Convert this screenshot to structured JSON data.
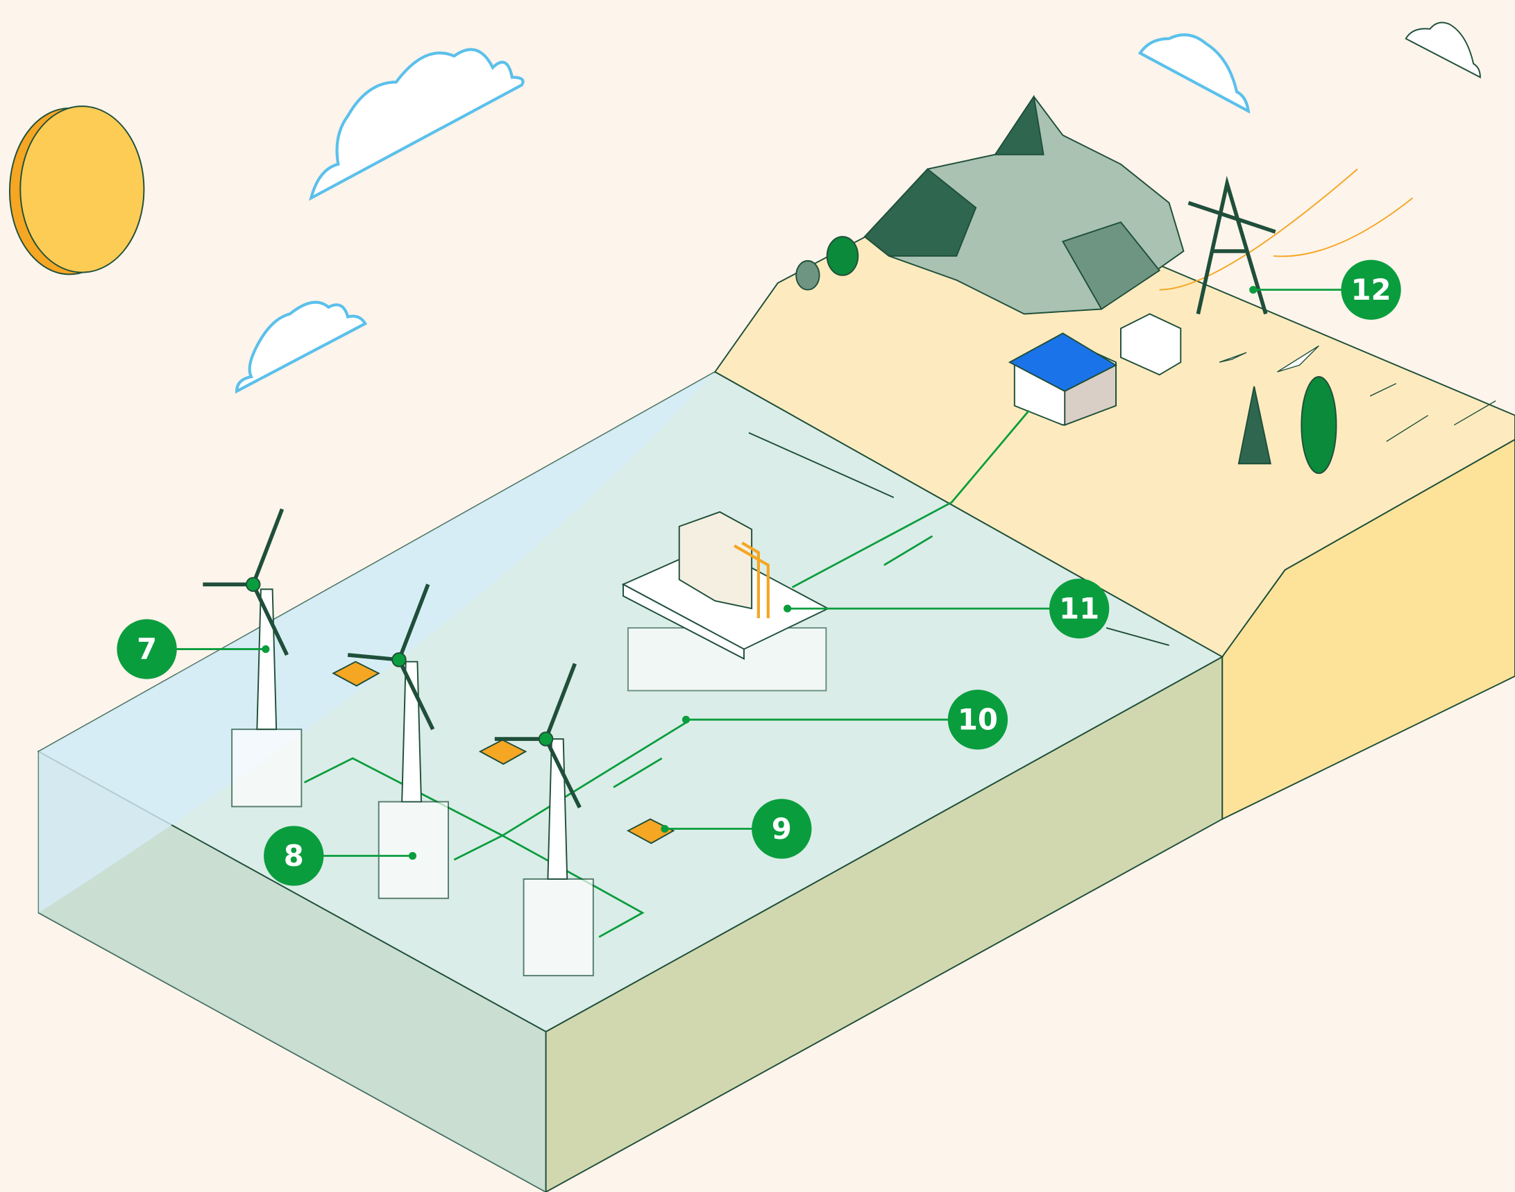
{
  "callouts": [
    {
      "label": "7"
    },
    {
      "label": "8"
    },
    {
      "label": "9"
    },
    {
      "label": "10"
    },
    {
      "label": "11"
    },
    {
      "label": "12"
    }
  ]
}
